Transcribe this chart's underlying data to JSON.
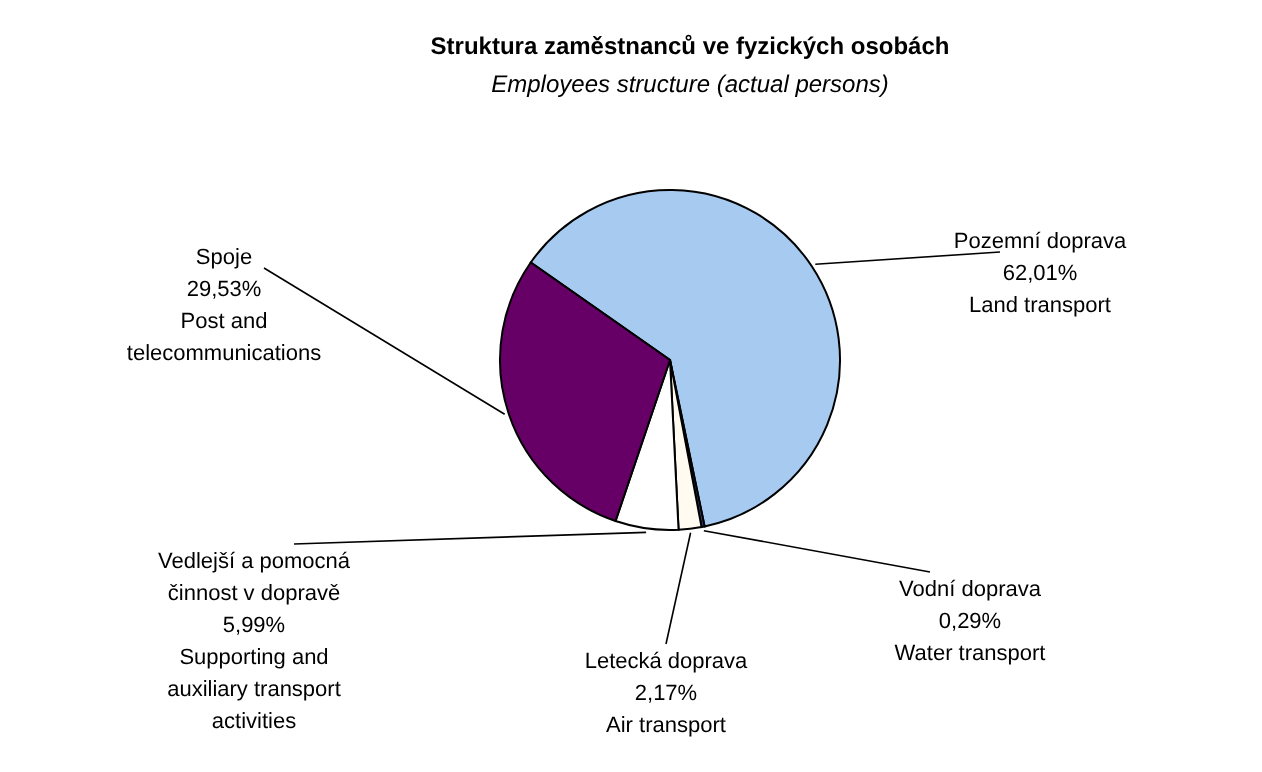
{
  "chart_data": {
    "type": "pie",
    "title": "Struktura zaměstnanců ve fyzických osobách",
    "subtitle": "Employees structure (actual persons)",
    "categories": [
      "Pozemní doprava",
      "Vodní doprava",
      "Letecká doprava",
      "Vedlejší a pomocná činnost v dopravě",
      "Spoje"
    ],
    "values": [
      62.01,
      0.29,
      2.17,
      5.99,
      29.53
    ],
    "value_labels": [
      "62,01%",
      "0,29%",
      "2,17%",
      "5,99%",
      "29,53%"
    ],
    "colors": [
      "#a6caf0",
      "#404080",
      "#fffbf0",
      "#ffffff",
      "#660066"
    ],
    "annotations": [
      "Land transport",
      "Water transport",
      "Air transport",
      "Supporting and auxiliary transport activities",
      "Post and telecommunications"
    ]
  }
}
